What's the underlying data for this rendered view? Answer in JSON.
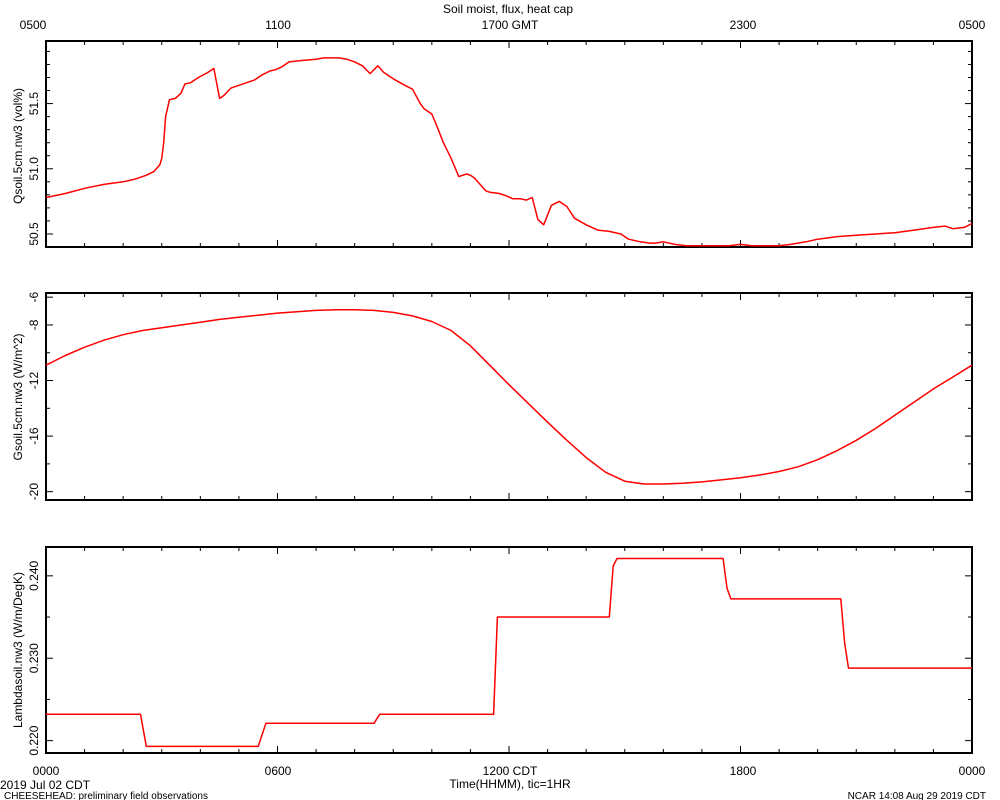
{
  "figure": {
    "title": "Soil moist, flux, heat cap",
    "top_axis_ticks": [
      "0500",
      "1100",
      "1700 GMT",
      "2300",
      "0500"
    ],
    "bottom_axis_ticks": [
      "0000",
      "0600",
      "1200 CDT",
      "1800",
      "0000"
    ],
    "xlabel": "Time(HHMM), tic=1HR",
    "date_label": "2019 Jul 02 CDT",
    "source_note": "CHEESEHEAD: preliminary field observations",
    "credit": "NCAR 14:08 Aug 29 2019 CDT",
    "line_color": "#ff0000"
  },
  "chart_data": [
    {
      "type": "line",
      "ylabel": "Qsoil.5cm.nw3 (vol%)",
      "ylim": [
        50.4,
        51.98
      ],
      "yticks": [
        "50.5",
        "51.0",
        "51.5"
      ],
      "xlim": [
        0,
        24
      ],
      "series": [
        {
          "x": [
            0,
            0.5,
            1,
            1.5,
            2,
            2.3,
            2.6,
            2.8,
            2.95,
            3.0,
            3.05,
            3.1,
            3.2,
            3.35,
            3.5,
            3.6,
            3.75,
            3.8,
            3.95,
            4.2,
            4.35,
            4.5,
            4.6,
            4.8,
            5.0,
            5.2,
            5.4,
            5.6,
            5.8,
            5.95,
            6.1,
            6.3,
            6.6,
            7.0,
            7.2,
            7.4,
            7.6,
            7.8,
            7.9,
            8.0,
            8.2,
            8.4,
            8.6,
            8.75,
            8.9,
            9.0,
            9.3,
            9.5,
            9.7,
            9.8,
            10.0,
            10.1,
            10.3,
            10.5,
            10.7,
            10.9,
            11.0,
            11.1,
            11.25,
            11.4,
            11.5,
            11.75,
            11.95,
            12.1,
            12.3,
            12.45,
            12.6,
            12.75,
            12.9,
            13.1,
            13.3,
            13.5,
            13.7,
            14.0,
            14.3,
            14.6,
            14.9,
            15.1,
            15.4,
            15.65,
            15.8,
            16.0,
            16.3,
            16.6,
            17.0,
            17.3,
            17.5,
            17.7,
            18.0,
            18.3,
            18.6,
            19.0,
            19.3,
            19.7,
            20.0,
            20.5,
            21.0,
            21.5,
            22.0,
            22.5,
            23.0,
            23.3,
            23.5,
            23.8,
            24.0
          ],
          "y": [
            50.78,
            50.81,
            50.85,
            50.88,
            50.9,
            50.92,
            50.95,
            50.98,
            51.03,
            51.08,
            51.2,
            51.4,
            51.53,
            51.54,
            51.58,
            51.65,
            51.66,
            51.67,
            51.7,
            51.74,
            51.77,
            51.54,
            51.56,
            51.62,
            51.64,
            51.66,
            51.68,
            51.72,
            51.75,
            51.76,
            51.78,
            51.82,
            51.83,
            51.84,
            51.85,
            51.85,
            51.85,
            51.84,
            51.83,
            51.82,
            51.79,
            51.73,
            51.79,
            51.74,
            51.71,
            51.69,
            51.64,
            51.61,
            51.5,
            51.46,
            51.42,
            51.35,
            51.2,
            51.08,
            50.94,
            50.96,
            50.95,
            50.93,
            50.88,
            50.83,
            50.82,
            50.81,
            50.79,
            50.77,
            50.77,
            50.76,
            50.78,
            50.61,
            50.57,
            50.72,
            50.75,
            50.71,
            50.62,
            50.57,
            50.53,
            50.52,
            50.5,
            50.46,
            50.44,
            50.43,
            50.43,
            50.44,
            50.42,
            50.41,
            50.41,
            50.41,
            50.41,
            50.41,
            50.42,
            50.41,
            50.41,
            50.41,
            50.42,
            50.44,
            50.46,
            50.48,
            50.49,
            50.5,
            50.51,
            50.53,
            50.55,
            50.56,
            50.54,
            50.55,
            50.58
          ]
        }
      ]
    },
    {
      "type": "line",
      "ylabel": "Gsoil.5cm.nw3 (W/m^2)",
      "ylim": [
        -20.6,
        -5.7
      ],
      "yticks": [
        "-20",
        "-16",
        "-12",
        "-8",
        "-6"
      ],
      "xlim": [
        0,
        24
      ],
      "series": [
        {
          "x": [
            0,
            0.5,
            1,
            1.5,
            2,
            2.5,
            3,
            3.5,
            4,
            4.5,
            5,
            5.5,
            6,
            6.5,
            7,
            7.5,
            8,
            8.5,
            9,
            9.5,
            10,
            10.5,
            11,
            11.5,
            12,
            12.5,
            13,
            13.5,
            14,
            14.5,
            15,
            15.5,
            16,
            16.5,
            17,
            17.5,
            18,
            18.5,
            19,
            19.5,
            20,
            20.5,
            21,
            21.5,
            22,
            22.5,
            23,
            23.5,
            24
          ],
          "y": [
            -10.9,
            -10.2,
            -9.6,
            -9.1,
            -8.7,
            -8.4,
            -8.2,
            -8.0,
            -7.8,
            -7.6,
            -7.45,
            -7.3,
            -7.15,
            -7.05,
            -6.95,
            -6.9,
            -6.9,
            -6.95,
            -7.1,
            -7.35,
            -7.75,
            -8.4,
            -9.5,
            -10.9,
            -12.3,
            -13.65,
            -15.0,
            -16.3,
            -17.55,
            -18.6,
            -19.25,
            -19.45,
            -19.45,
            -19.4,
            -19.3,
            -19.15,
            -19.0,
            -18.8,
            -18.55,
            -18.2,
            -17.7,
            -17.05,
            -16.3,
            -15.45,
            -14.5,
            -13.55,
            -12.6,
            -11.75,
            -10.9
          ]
        }
      ]
    },
    {
      "type": "line",
      "ylabel": "Lambdasoil.nw3 (W/m/DegK)",
      "ylim": [
        0.2185,
        0.2435
      ],
      "yticks": [
        "0.220",
        "0.230",
        "0.240"
      ],
      "xlim": [
        0,
        24
      ],
      "series": [
        {
          "x": [
            0,
            2.45,
            2.6,
            5.5,
            5.7,
            8.5,
            8.65,
            11.6,
            11.7,
            14.6,
            14.7,
            14.8,
            17.55,
            17.65,
            17.75,
            20.6,
            20.7,
            20.8,
            24
          ],
          "y": [
            0.2232,
            0.2232,
            0.2193,
            0.2193,
            0.2221,
            0.2221,
            0.2232,
            0.2232,
            0.235,
            0.235,
            0.2412,
            0.2421,
            0.2421,
            0.2385,
            0.2372,
            0.2372,
            0.2318,
            0.2288,
            0.2288
          ]
        }
      ]
    }
  ]
}
